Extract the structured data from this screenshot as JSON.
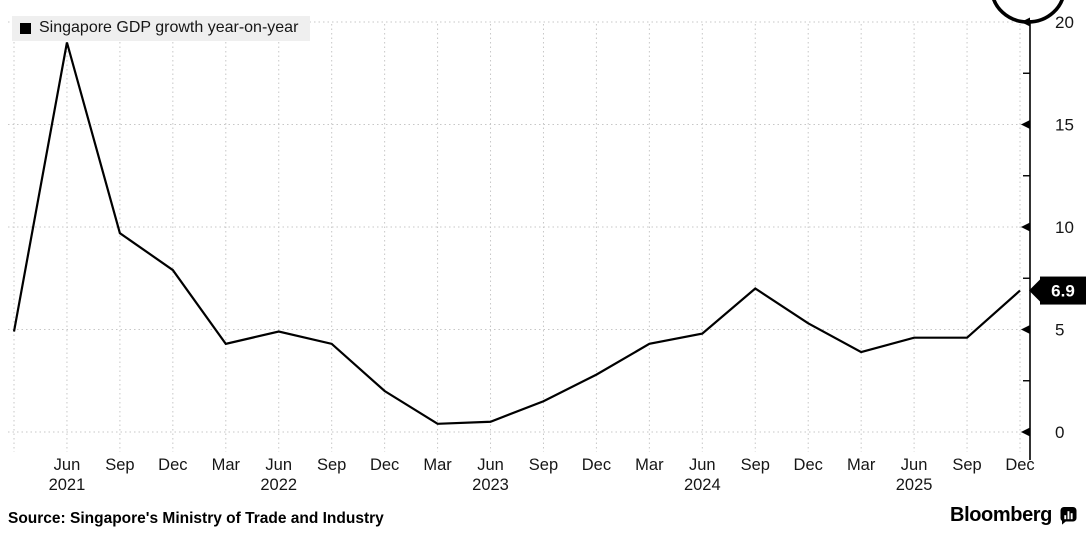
{
  "chart_data": {
    "type": "line",
    "title": "Singapore GDP growth year-on-year",
    "legend": "Singapore GDP growth year-on-year",
    "categories": [
      "Mar 2021",
      "Jun 2021",
      "Sep 2021",
      "Dec 2021",
      "Mar 2022",
      "Jun 2022",
      "Sep 2022",
      "Dec 2022",
      "Mar 2023",
      "Jun 2023",
      "Sep 2023",
      "Dec 2023",
      "Mar 2024",
      "Jun 2024",
      "Sep 2024",
      "Dec 2024",
      "Mar 2025",
      "Jun 2025",
      "Sep 2025",
      "Dec 2025"
    ],
    "series": [
      {
        "name": "Singapore GDP growth year-on-year",
        "values": [
          4.9,
          19.0,
          9.7,
          7.9,
          4.3,
          4.9,
          4.3,
          2.0,
          0.4,
          0.5,
          1.5,
          2.8,
          4.3,
          4.8,
          7.0,
          5.3,
          3.9,
          4.6,
          4.6,
          6.9
        ]
      }
    ],
    "x_tick_labels": [
      "",
      "Jun",
      "Sep",
      "Dec",
      "Mar",
      "Jun",
      "Sep",
      "Dec",
      "Mar",
      "Jun",
      "Sep",
      "Dec",
      "Mar",
      "Jun",
      "Sep",
      "Dec",
      "Mar",
      "Jun",
      "Sep",
      "Dec"
    ],
    "year_rows": [
      {
        "label": "2021",
        "index": 1
      },
      {
        "label": "2022",
        "index": 5
      },
      {
        "label": "2023",
        "index": 9
      },
      {
        "label": "2024",
        "index": 13
      },
      {
        "label": "2025",
        "index": 17
      }
    ],
    "y_ticks": [
      0,
      5,
      10,
      15,
      20
    ],
    "y_minor_ticks": [
      2.5,
      7.5,
      12.5,
      17.5
    ],
    "ylim": [
      0,
      20
    ],
    "xlabel": "",
    "ylabel": "",
    "last_value_label": "6.9",
    "line_color": "#000000",
    "grid": true,
    "grid_style": "dotted",
    "legend_position": "top-left",
    "y_axis_side": "right",
    "annotation": "hand-drawn circle at top of y-axis near 20"
  },
  "footer": {
    "source": "Source: Singapore's Ministry of Trade and Industry",
    "brand": "Bloomberg"
  }
}
